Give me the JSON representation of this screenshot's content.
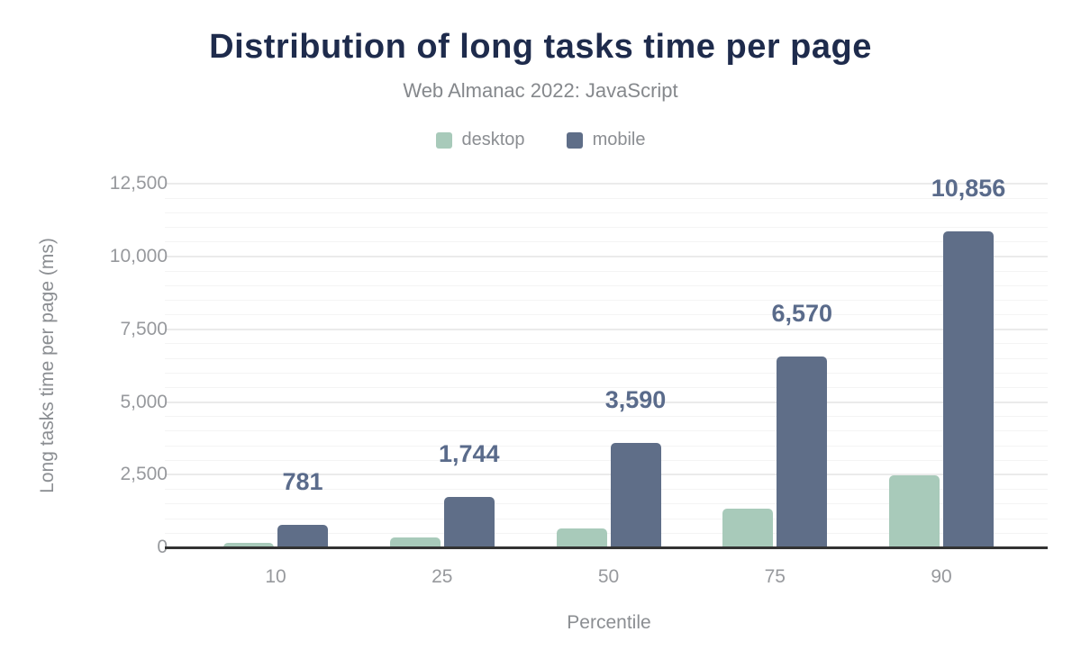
{
  "header": {
    "title": "Distribution of long tasks time per page",
    "subtitle": "Web Almanac 2022: JavaScript"
  },
  "legend": {
    "items": [
      {
        "label": "desktop",
        "color": "#a8caba"
      },
      {
        "label": "mobile",
        "color": "#5f6e88"
      }
    ]
  },
  "colors": {
    "title": "#1e2b4c",
    "subtitle": "#85888c",
    "axis_text": "#97999d",
    "desktop_bar": "#a8caba",
    "mobile_bar": "#5f6e88",
    "data_label": "#5a6b8b",
    "axis_line": "#333333",
    "grid_major": "#ebebeb",
    "grid_minor": "#f4f4f4"
  },
  "chart_data": {
    "type": "bar",
    "title": "Distribution of long tasks time per page",
    "subtitle": "Web Almanac 2022: JavaScript",
    "categories": [
      "10",
      "25",
      "50",
      "75",
      "90"
    ],
    "series": [
      {
        "name": "desktop",
        "color": "#a8caba",
        "values": [
          170,
          360,
          670,
          1350,
          2480
        ],
        "values_estimated_from_bar_heights": true,
        "labels_shown": false
      },
      {
        "name": "mobile",
        "color": "#5f6e88",
        "values": [
          781,
          1744,
          3590,
          6570,
          10856
        ],
        "labels": [
          "781",
          "1,744",
          "3,590",
          "6,570",
          "10,856"
        ],
        "labels_shown": true
      }
    ],
    "xlabel": "Percentile",
    "ylabel": "Long tasks time per page (ms)",
    "ylim": [
      0,
      12500
    ],
    "yticks": [
      {
        "value": 0,
        "label": "0"
      },
      {
        "value": 2500,
        "label": "2,500"
      },
      {
        "value": 5000,
        "label": "5,000"
      },
      {
        "value": 7500,
        "label": "7,500"
      },
      {
        "value": 10000,
        "label": "10,000"
      },
      {
        "value": 12500,
        "label": "12,500"
      }
    ],
    "grid": {
      "minor_step": 500,
      "major_step": 2500,
      "horizontal": true
    },
    "legend_position": "top"
  }
}
